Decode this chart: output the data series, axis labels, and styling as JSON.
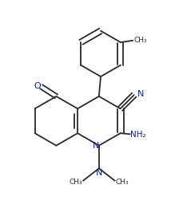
{
  "bg_color": "#ffffff",
  "line_color": "#2a2a2a",
  "line_width": 1.3,
  "text_color": "#1a1aaa",
  "figsize": [
    2.19,
    2.66
  ],
  "dpi": 100,
  "xlim": [
    0.05,
    0.95
  ],
  "ylim": [
    0.05,
    1.25
  ]
}
